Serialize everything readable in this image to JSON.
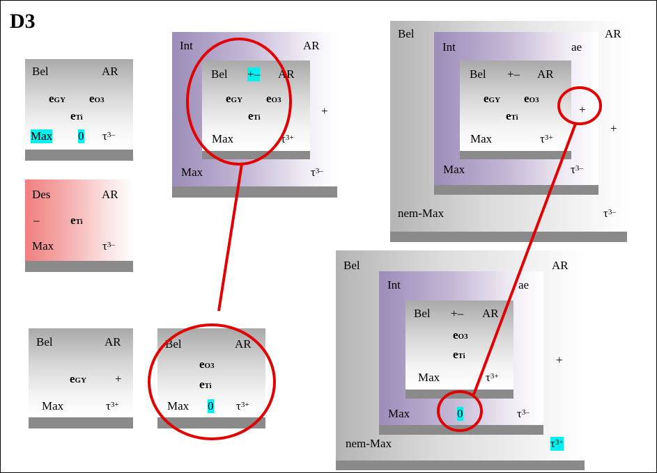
{
  "title": "D3",
  "common": {
    "bel": "Bel",
    "ar": "AR",
    "int": "Int",
    "des": "Des",
    "max": "Max",
    "nem_max": "nem-Max",
    "ae": "ae",
    "plus": "+",
    "minus": "–",
    "plusminus": "+–",
    "zero": "0",
    "e": "e",
    "gy": "GY",
    "o3": "O3",
    "ti": "Ti",
    "tau": "τ",
    "minus3": "3–",
    "plus3": "3+"
  },
  "colors": {
    "highlight": "#00f0f0",
    "connector": "#e00000",
    "purple": "#9c8cb8",
    "pink": "#f07e7e"
  }
}
